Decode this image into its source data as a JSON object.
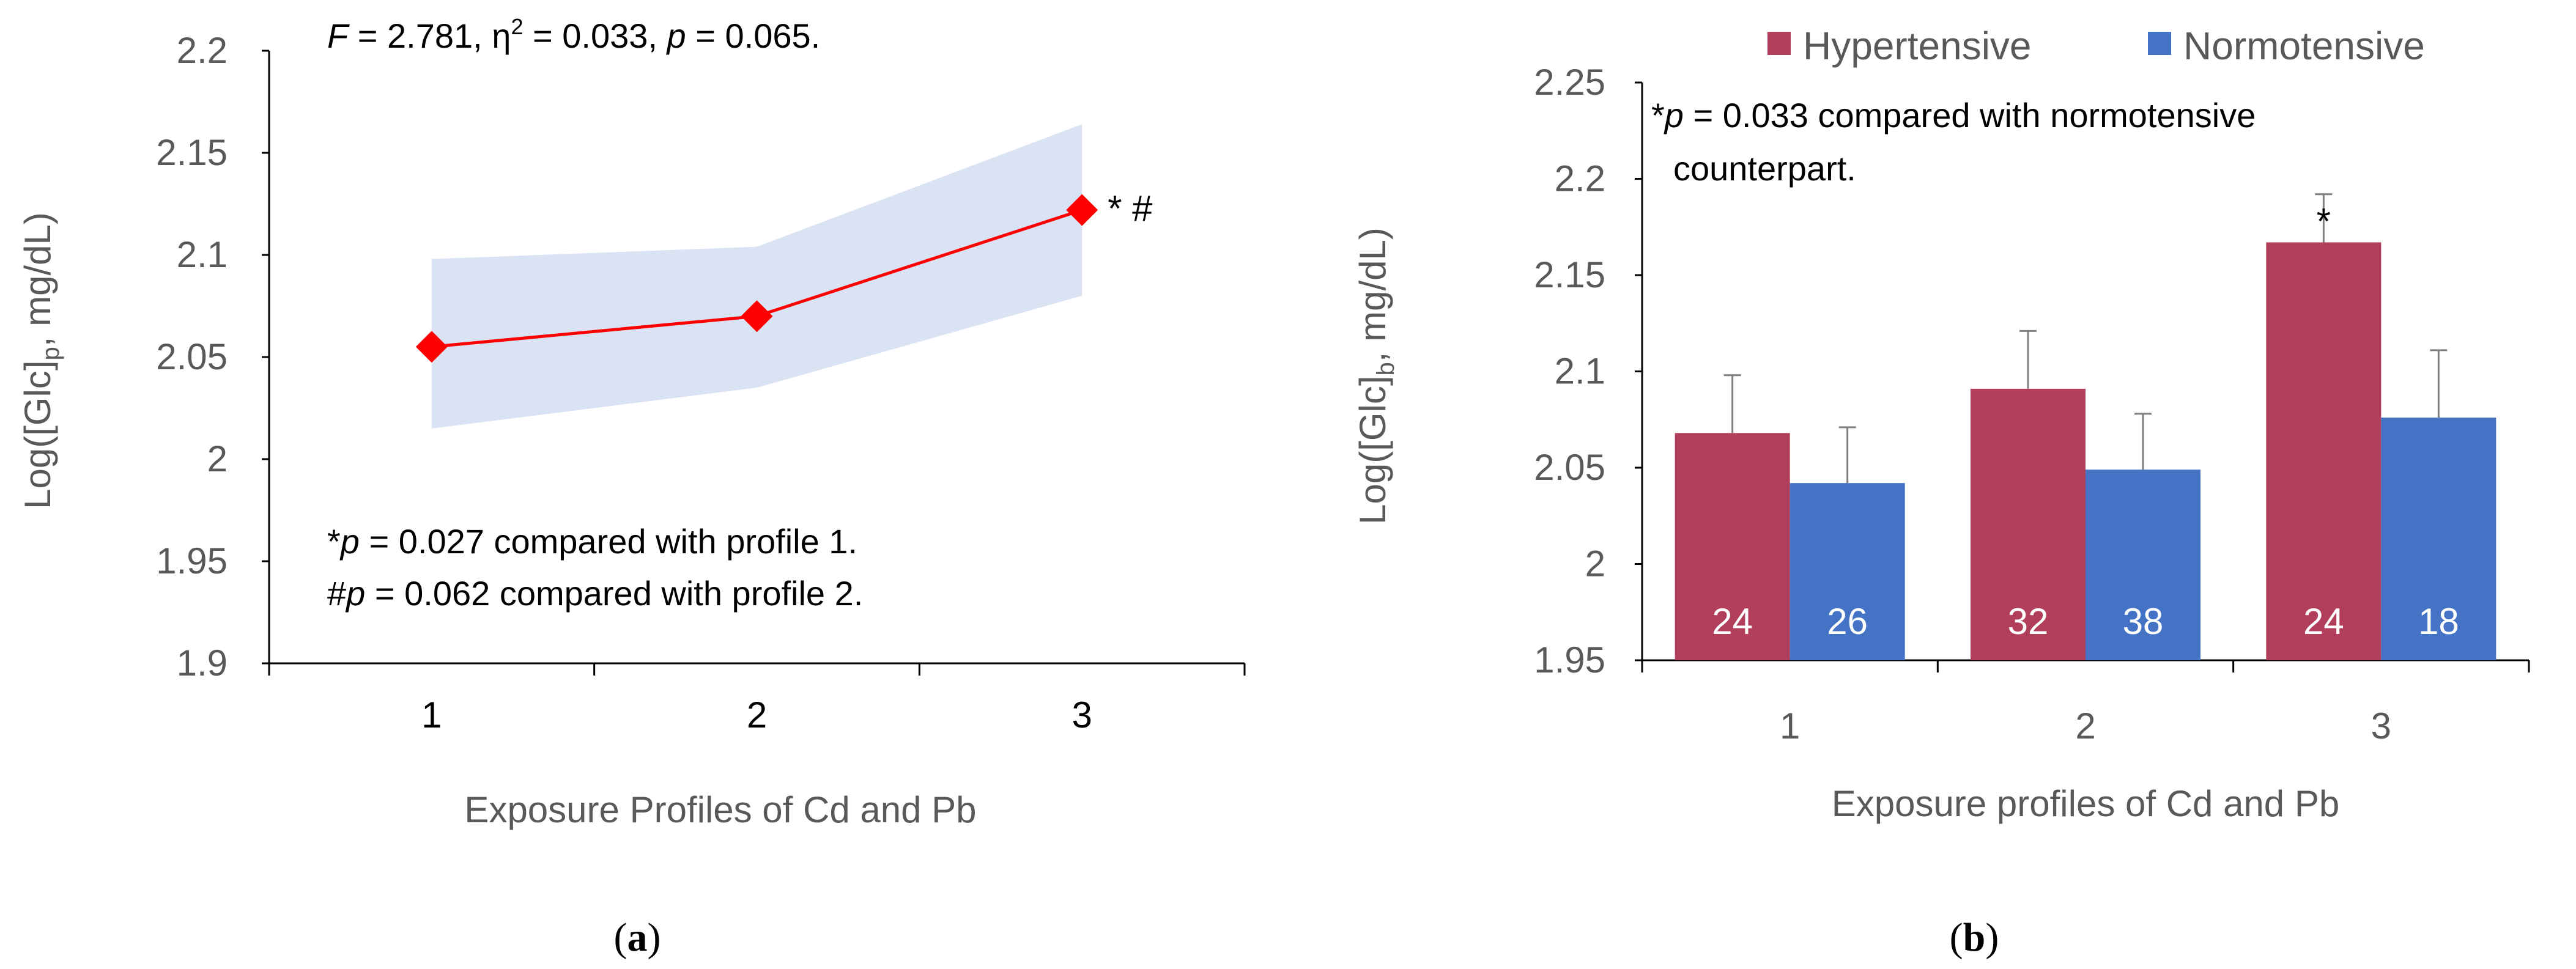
{
  "chart_data": [
    {
      "panel_label": "a",
      "type": "line",
      "xlabel": "Exposure Profiles of Cd and Pb",
      "ylabel": {
        "main": "Log([Glc]",
        "sub": "p",
        "tail": ", mg/dL)"
      },
      "ylim": [
        1.9,
        2.2
      ],
      "yticks": [
        "1.9",
        "1.95",
        "2",
        "2.05",
        "2.1",
        "2.15",
        "2.2"
      ],
      "categories": [
        "1",
        "2",
        "3"
      ],
      "series": [
        {
          "name": "Log([Glc]p)",
          "color": "#ff0000",
          "values": [
            2.055,
            2.07,
            2.122
          ]
        }
      ],
      "band": {
        "name": "confidence band",
        "color": "#dae3f3",
        "lower": [
          2.015,
          2.035,
          2.08
        ],
        "upper": [
          2.098,
          2.104,
          2.164
        ]
      },
      "point_marks": [
        {
          "index": 2,
          "text": "* #"
        }
      ],
      "annotations": {
        "stats": {
          "F": "F",
          "F_value": " = 2.781, η",
          "eta_sup": "2",
          "rest": " = 0.033, ",
          "p": "p",
          "p_value": " = 0.065."
        },
        "note1": {
          "prefix": "*",
          "p": "p",
          "text": " = 0.027 compared with profile 1."
        },
        "note2": {
          "prefix": "#",
          "p": "p",
          "text": " = 0.062 compared with profile 2."
        }
      },
      "grid": false
    },
    {
      "panel_label": "b",
      "type": "bar",
      "xlabel": "Exposure profiles of Cd and Pb",
      "ylabel": {
        "main": "Log([Glc]",
        "sub": "b",
        "tail": ", mg/dL)"
      },
      "ylim": [
        1.95,
        2.25
      ],
      "yticks": [
        "1.95",
        "2",
        "2.05",
        "2.1",
        "2.15",
        "2.2",
        "2.25"
      ],
      "categories": [
        "1",
        "2",
        "3"
      ],
      "legend_position": "top",
      "series": [
        {
          "name": "Hypertensive",
          "color": "#b13f5b",
          "values": [
            2.068,
            2.091,
            2.167
          ],
          "errors": [
            0.03,
            0.03,
            0.025
          ],
          "counts": [
            "24",
            "32",
            "24"
          ]
        },
        {
          "name": "Normotensive",
          "color": "#4472c4",
          "values": [
            2.042,
            2.049,
            2.076
          ],
          "errors": [
            0.029,
            0.029,
            0.035
          ],
          "counts": [
            "26",
            "38",
            "18"
          ]
        }
      ],
      "bar_marks": [
        {
          "series": 0,
          "index": 2,
          "text": "*"
        }
      ],
      "annotations": {
        "note": {
          "prefix": "*",
          "p": "p",
          "line1": " = 0.033 compared with normotensive",
          "line2": "counterpart."
        }
      },
      "grid": false
    }
  ]
}
